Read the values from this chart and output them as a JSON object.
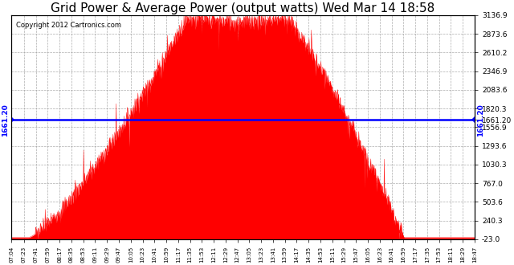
{
  "title": "Grid Power & Average Power (output watts) Wed Mar 14 18:58",
  "copyright": "Copyright 2012 Cartronics.com",
  "avg_line_value": 1661.2,
  "avg_label": "1661.20",
  "y_min": -23.0,
  "y_max": 3136.9,
  "ytick_labels": [
    "3136.9",
    "2873.6",
    "2610.2",
    "2346.9",
    "2083.6",
    "1820.3",
    "1661.20",
    "1556.9",
    "1293.6",
    "1030.3",
    "767.0",
    "503.6",
    "240.3",
    "-23.0"
  ],
  "ytick_values": [
    3136.9,
    2873.6,
    2610.2,
    2346.9,
    2083.6,
    1820.3,
    1661.2,
    1556.9,
    1293.6,
    1030.3,
    767.0,
    503.6,
    240.3,
    -23.0
  ],
  "xtick_labels": [
    "07:04",
    "07:23",
    "07:41",
    "07:59",
    "08:17",
    "08:35",
    "08:53",
    "09:11",
    "09:29",
    "09:47",
    "10:05",
    "10:23",
    "10:41",
    "10:59",
    "11:17",
    "11:35",
    "11:53",
    "12:11",
    "12:29",
    "12:47",
    "13:05",
    "13:23",
    "13:41",
    "13:59",
    "14:17",
    "14:35",
    "14:53",
    "15:11",
    "15:29",
    "15:47",
    "16:05",
    "16:23",
    "16:41",
    "16:59",
    "17:17",
    "17:35",
    "17:53",
    "18:11",
    "18:29",
    "18:47"
  ],
  "fill_color": "#FF0000",
  "line_color": "#FF0000",
  "avg_line_color": "#0000FF",
  "background_color": "#FFFFFF",
  "plot_bg_color": "#FFFFFF",
  "grid_color": "#999999",
  "title_color": "#000000",
  "title_fontsize": 11,
  "axis_label_color": "#000000"
}
